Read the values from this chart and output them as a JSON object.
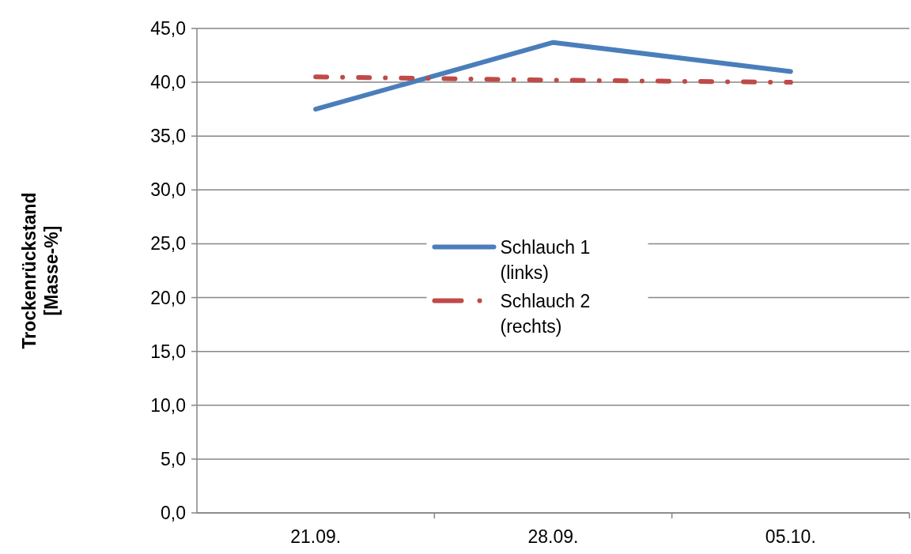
{
  "chart_data": {
    "type": "line",
    "ylabel": "Trockenrückstand [Masse-%]",
    "categories": [
      "21.09.",
      "28.09.",
      "05.10."
    ],
    "series": [
      {
        "name": "Schlauch 1 (links)",
        "color": "#4a7ebb",
        "values": [
          37.5,
          43.7,
          41.0
        ],
        "line_style": "solid"
      },
      {
        "name": "Schlauch 2 (rechts)",
        "color": "#be4b48",
        "values": [
          40.5,
          40.2,
          40.0
        ],
        "line_style": "dashed"
      }
    ],
    "ylim": [
      0,
      45
    ],
    "yticks": [
      {
        "value": 0,
        "label": "0,0"
      },
      {
        "value": 5,
        "label": "5,0"
      },
      {
        "value": 10,
        "label": "10,0"
      },
      {
        "value": 15,
        "label": "15,0"
      },
      {
        "value": 20,
        "label": "20,0"
      },
      {
        "value": 25,
        "label": "25,0"
      },
      {
        "value": 30,
        "label": "30,0"
      },
      {
        "value": 35,
        "label": "35,0"
      },
      {
        "value": 40,
        "label": "40,0"
      },
      {
        "value": 45,
        "label": "45,0"
      }
    ],
    "grid": "y",
    "legend": "center",
    "marker": "none"
  }
}
